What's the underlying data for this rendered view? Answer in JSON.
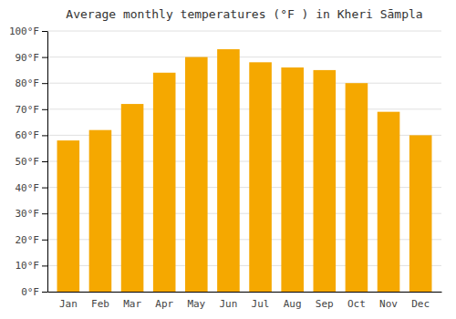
{
  "chart_data": {
    "type": "bar",
    "title": "Average monthly temperatures (°F ) in Kheri Sāmpla",
    "categories": [
      "Jan",
      "Feb",
      "Mar",
      "Apr",
      "May",
      "Jun",
      "Jul",
      "Aug",
      "Sep",
      "Oct",
      "Nov",
      "Dec"
    ],
    "values": [
      58,
      62,
      72,
      84,
      90,
      93,
      88,
      86,
      85,
      80,
      69,
      60
    ],
    "color": "#F5A800",
    "ylim": [
      0,
      100
    ],
    "yticks": [
      {
        "value": 0,
        "label": "0°F"
      },
      {
        "value": 10,
        "label": "10°F"
      },
      {
        "value": 20,
        "label": "20°F"
      },
      {
        "value": 30,
        "label": "30°F"
      },
      {
        "value": 40,
        "label": "40°F"
      },
      {
        "value": 50,
        "label": "50°F"
      },
      {
        "value": 60,
        "label": "60°F"
      },
      {
        "value": 70,
        "label": "70°F"
      },
      {
        "value": 80,
        "label": "80°F"
      },
      {
        "value": 90,
        "label": "90°F"
      },
      {
        "value": 100,
        "label": "100°F"
      }
    ],
    "grid": true
  }
}
